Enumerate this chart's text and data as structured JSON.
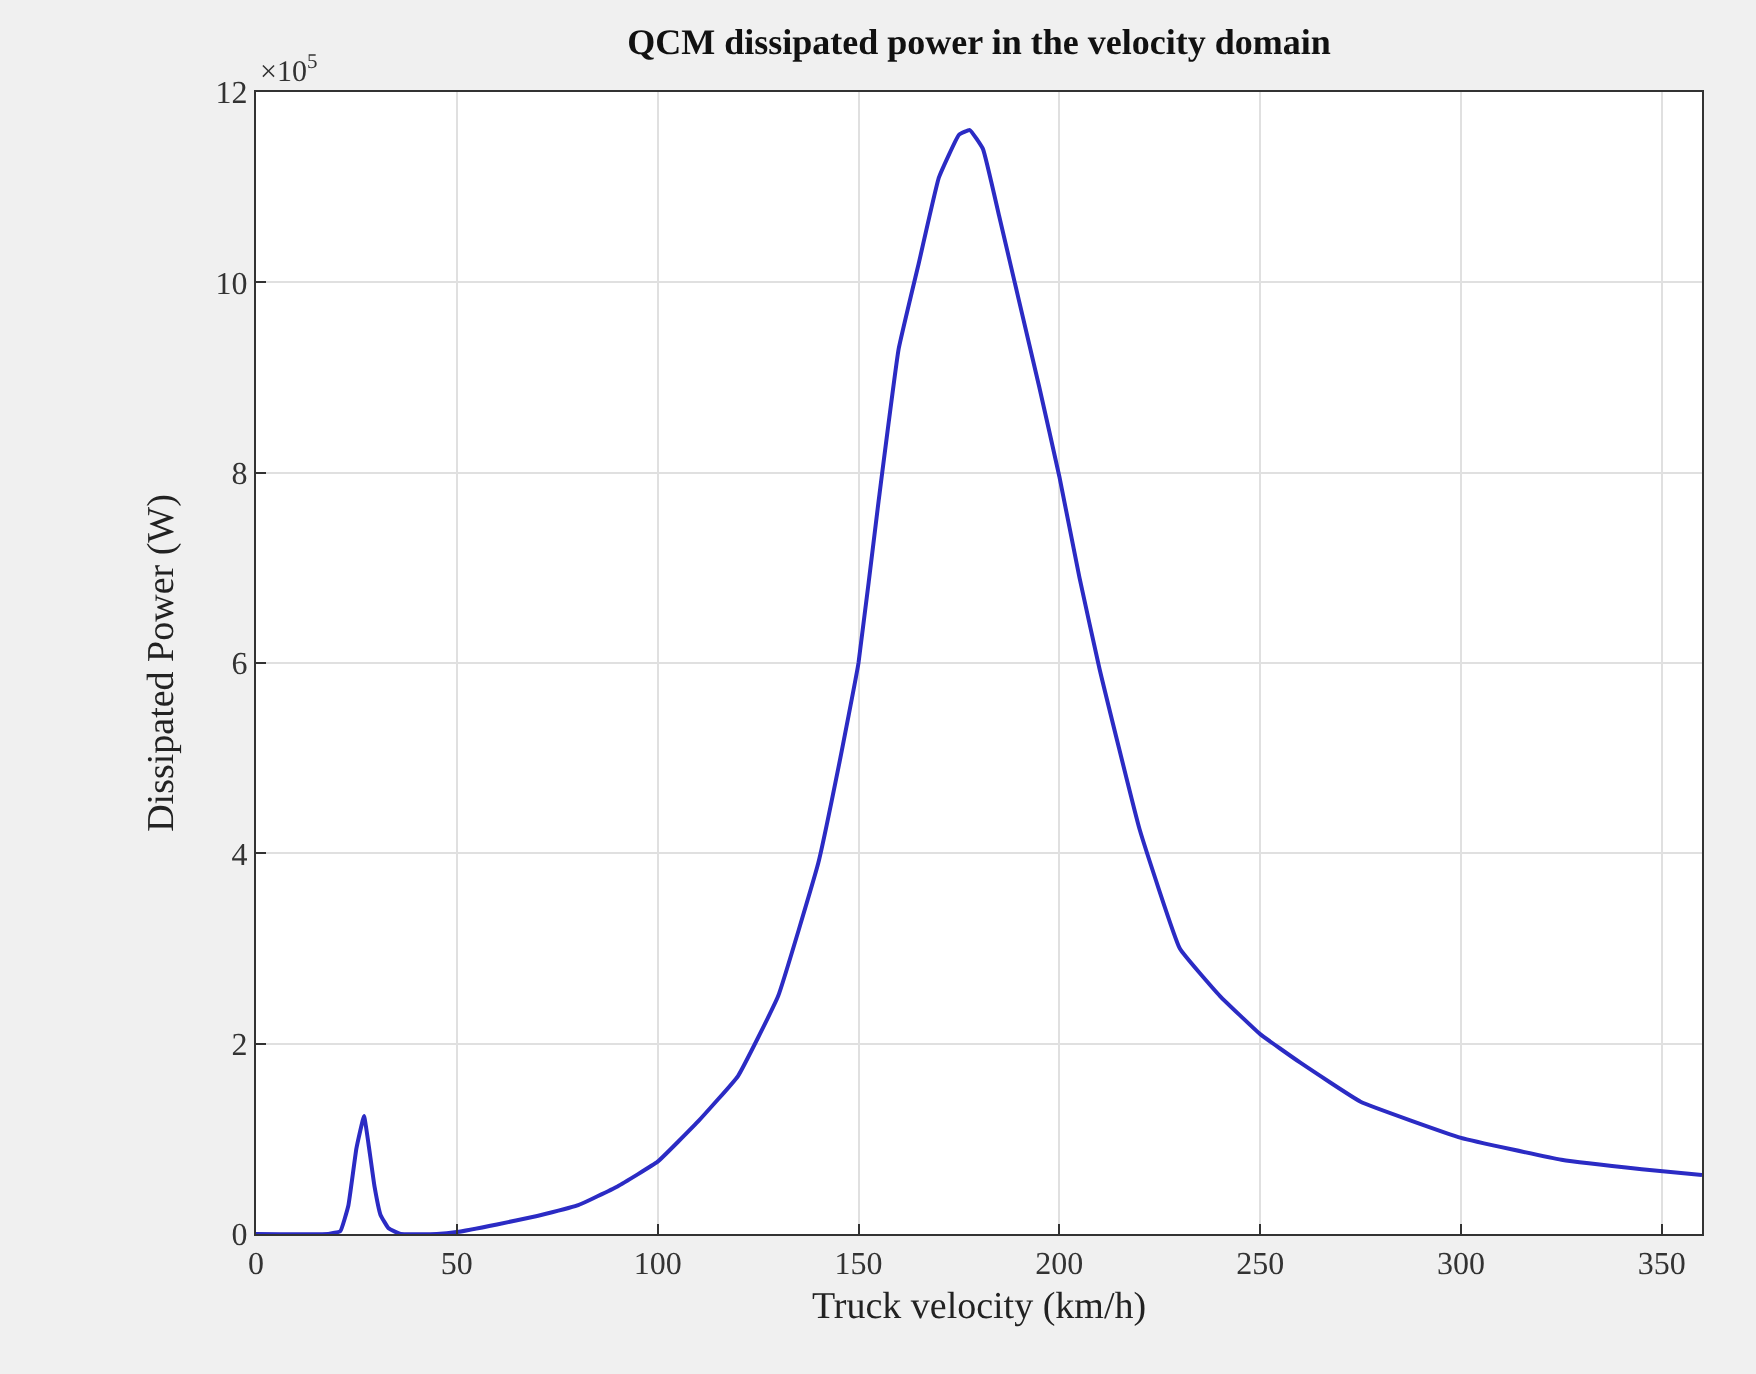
{
  "chart_data": {
    "type": "line",
    "title": "QCM dissipated power in the velocity domain",
    "xlabel": "Truck velocity (km/h)",
    "ylabel": "Dissipated Power (W)",
    "annotations": [
      "×10$^{5}$"
    ],
    "x": [
      0,
      18,
      21,
      23,
      25,
      26.9,
      28,
      29.5,
      31,
      33,
      36,
      45,
      50,
      60,
      70,
      80,
      90,
      100,
      110,
      120,
      130,
      140,
      145,
      150,
      155,
      160,
      165,
      170,
      175,
      177.7,
      181,
      185,
      190,
      195,
      200,
      205,
      210,
      220,
      230,
      240,
      250,
      260,
      275,
      300,
      325,
      345,
      360
    ],
    "series": [
      {
        "color": "#2b2bc4",
        "values": [
          0,
          0,
          0.03,
          0.3,
          0.9,
          1.24,
          0.95,
          0.5,
          0.2,
          0.06,
          0,
          0,
          0.02,
          0.1,
          0.19,
          0.3,
          0.5,
          0.76,
          1.18,
          1.66,
          2.5,
          3.9,
          4.9,
          6.0,
          7.7,
          9.3,
          10.2,
          11.1,
          11.55,
          11.6,
          11.4,
          10.7,
          9.8,
          8.9,
          7.96,
          6.9,
          5.94,
          4.25,
          3.0,
          2.5,
          2.1,
          1.8,
          1.39,
          1.01,
          0.78,
          0.68,
          0.62
        ]
      }
    ],
    "xlim": [
      0,
      360
    ],
    "ylim": [
      0,
      12
    ],
    "xticks": [
      0,
      50,
      100,
      150,
      200,
      250,
      300,
      350
    ],
    "yticks": [
      0,
      2,
      4,
      6,
      8,
      10,
      12
    ],
    "grid": true,
    "line_style": "solid",
    "marker": "none"
  }
}
